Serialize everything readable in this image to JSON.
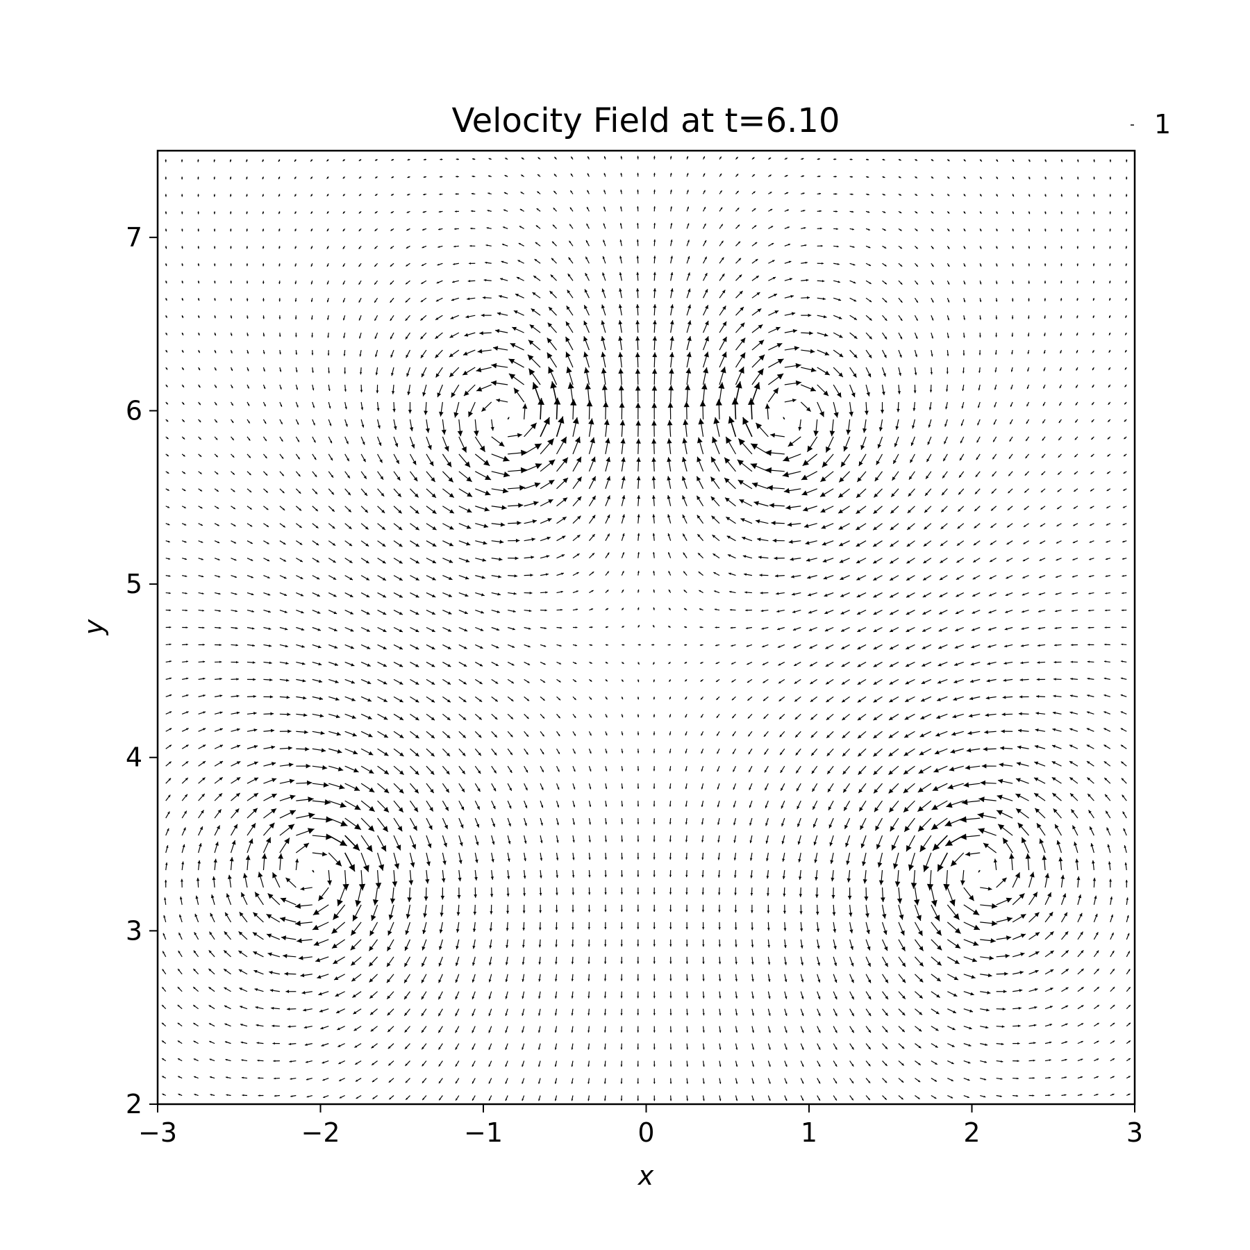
{
  "chart_data": {
    "type": "quiver",
    "title": "Velocity Field at t=6.10",
    "xlabel": "x",
    "ylabel": "y",
    "xlim": [
      -3,
      3
    ],
    "ylim": [
      2,
      7.5
    ],
    "xticks": [
      -3,
      -2,
      -1,
      0,
      1,
      2,
      3
    ],
    "xtick_labels": [
      "−3",
      "−2",
      "−1",
      "0",
      "1",
      "2",
      "3"
    ],
    "yticks": [
      2,
      3,
      4,
      5,
      6,
      7
    ],
    "ytick_labels": [
      "2",
      "3",
      "4",
      "5",
      "6",
      "7"
    ],
    "quiver_key": {
      "value": 1,
      "label": "1",
      "placement": "top-right, outside axes"
    },
    "grid": false,
    "arrow_color": "#000000",
    "vortices": [
      {
        "x": -0.85,
        "y": 5.95,
        "circulation": 1
      },
      {
        "x": 0.85,
        "y": 5.95,
        "circulation": -1
      },
      {
        "x": -2.05,
        "y": 3.35,
        "circulation": -1
      },
      {
        "x": 2.05,
        "y": 3.35,
        "circulation": 1
      }
    ],
    "grid_spacing": 0.1
  }
}
